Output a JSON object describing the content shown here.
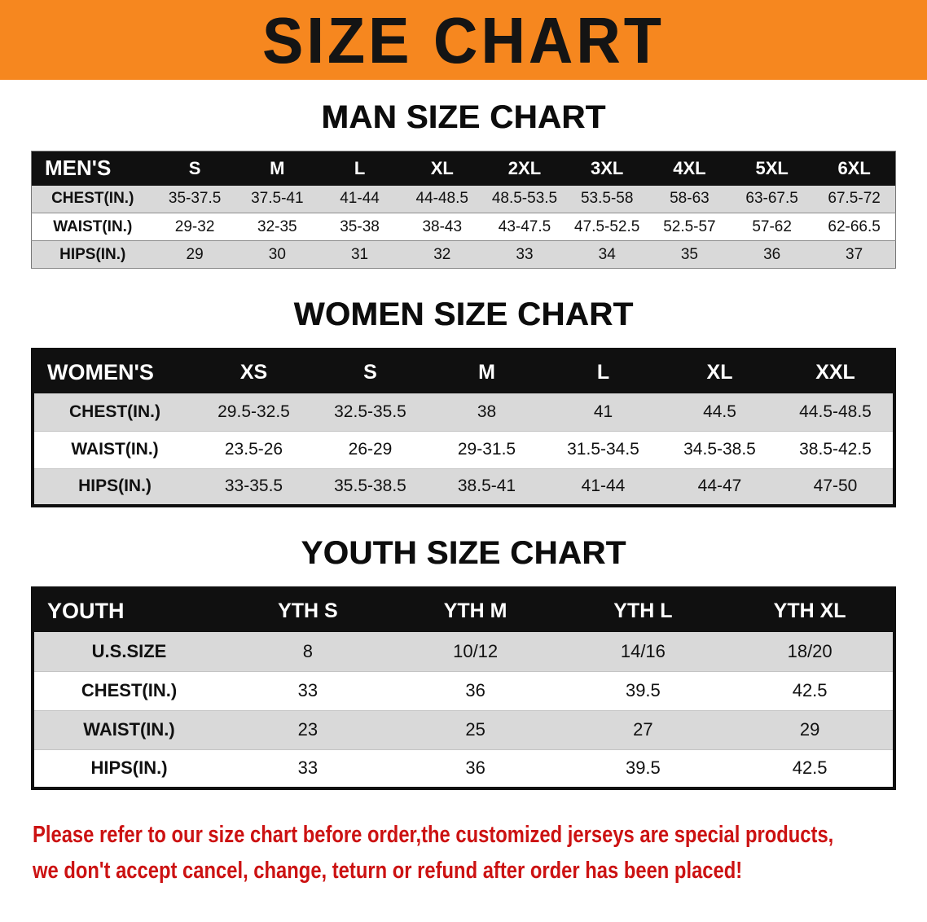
{
  "banner": {
    "title": "SIZE CHART"
  },
  "colors": {
    "banner_bg": "#f6871f",
    "header_bg": "#101010",
    "row_alt": "#d9d9d9",
    "footer_text": "#cc1212"
  },
  "sections": [
    {
      "heading": "MAN SIZE CHART",
      "table": {
        "header": [
          "MEN'S",
          "S",
          "M",
          "L",
          "XL",
          "2XL",
          "3XL",
          "4XL",
          "5XL",
          "6XL"
        ],
        "rows": [
          [
            "CHEST(IN.)",
            "35-37.5",
            "37.5-41",
            "41-44",
            "44-48.5",
            "48.5-53.5",
            "53.5-58",
            "58-63",
            "63-67.5",
            "67.5-72"
          ],
          [
            "WAIST(IN.)",
            "29-32",
            "32-35",
            "35-38",
            "38-43",
            "43-47.5",
            "47.5-52.5",
            "52.5-57",
            "57-62",
            "62-66.5"
          ],
          [
            "HIPS(IN.)",
            "29",
            "30",
            "31",
            "32",
            "33",
            "34",
            "35",
            "36",
            "37"
          ]
        ]
      }
    },
    {
      "heading": "WOMEN SIZE CHART",
      "table": {
        "header": [
          "WOMEN'S",
          "XS",
          "S",
          "M",
          "L",
          "XL",
          "XXL"
        ],
        "rows": [
          [
            "CHEST(IN.)",
            "29.5-32.5",
            "32.5-35.5",
            "38",
            "41",
            "44.5",
            "44.5-48.5"
          ],
          [
            "WAIST(IN.)",
            "23.5-26",
            "26-29",
            "29-31.5",
            "31.5-34.5",
            "34.5-38.5",
            "38.5-42.5"
          ],
          [
            "HIPS(IN.)",
            "33-35.5",
            "35.5-38.5",
            "38.5-41",
            "41-44",
            "44-47",
            "47-50"
          ]
        ]
      }
    },
    {
      "heading": "YOUTH SIZE CHART",
      "table": {
        "header": [
          "YOUTH",
          "YTH S",
          "YTH M",
          "YTH L",
          "YTH XL"
        ],
        "rows": [
          [
            "U.S.SIZE",
            "8",
            "10/12",
            "14/16",
            "18/20"
          ],
          [
            "CHEST(IN.)",
            "33",
            "36",
            "39.5",
            "42.5"
          ],
          [
            "WAIST(IN.)",
            "23",
            "25",
            "27",
            "29"
          ],
          [
            "HIPS(IN.)",
            "33",
            "36",
            "39.5",
            "42.5"
          ]
        ]
      }
    }
  ],
  "footer": {
    "line1": "Please refer to our size chart before order,the customized jerseys are special products,",
    "line2": "we don't accept cancel, change, teturn or refund after order has been placed!"
  }
}
